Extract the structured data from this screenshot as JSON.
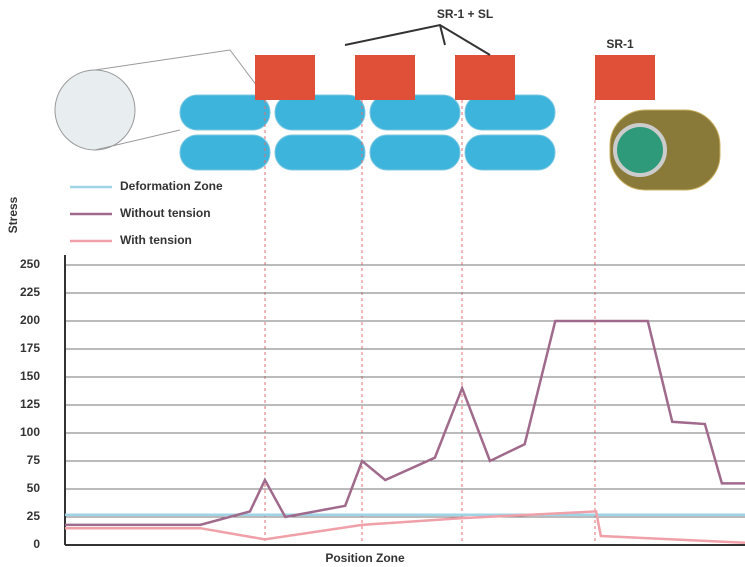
{
  "chart_data": {
    "type": "line",
    "top_label": "SR-1 + SL",
    "side_label": "SR-1",
    "y_label": "Stress",
    "x_label": "Position Zone",
    "x": [
      0,
      19.9,
      27.2,
      29.4,
      32.4,
      41.2,
      43.7,
      47.1,
      54.4,
      58.4,
      62.5,
      67.6,
      72.1,
      85.7,
      89.3,
      94.1,
      96.6,
      100
    ],
    "series": [
      {
        "name": "Deformation Zone",
        "color": "#9fd3e6",
        "x": [
          0,
          100
        ],
        "values": [
          27,
          27
        ]
      },
      {
        "name": "Without tension",
        "color": "#a06a8c",
        "x": [
          0,
          19.9,
          27.2,
          29.4,
          32.4,
          41.2,
          43.7,
          47.1,
          54.4,
          58.4,
          62.5,
          67.6,
          72.1,
          85.7,
          89.3,
          94.1,
          96.6,
          100
        ],
        "values": [
          18,
          18,
          30,
          58,
          25,
          35,
          75,
          58,
          78,
          140,
          75,
          90,
          200,
          200,
          110,
          108,
          55,
          55
        ]
      },
      {
        "name": "With tension",
        "color": "#f0a0a8",
        "x": [
          0,
          19.9,
          29.4,
          43.7,
          58.4,
          78.1,
          78.8,
          100
        ],
        "values": [
          15,
          15,
          5,
          18,
          24,
          30,
          8,
          2
        ]
      }
    ],
    "xlim": [
      0,
      100
    ],
    "ylim": [
      0,
      250
    ],
    "yticks": [
      0,
      25,
      50,
      75,
      100,
      125,
      150,
      175,
      200,
      225,
      250
    ],
    "grid": true
  }
}
